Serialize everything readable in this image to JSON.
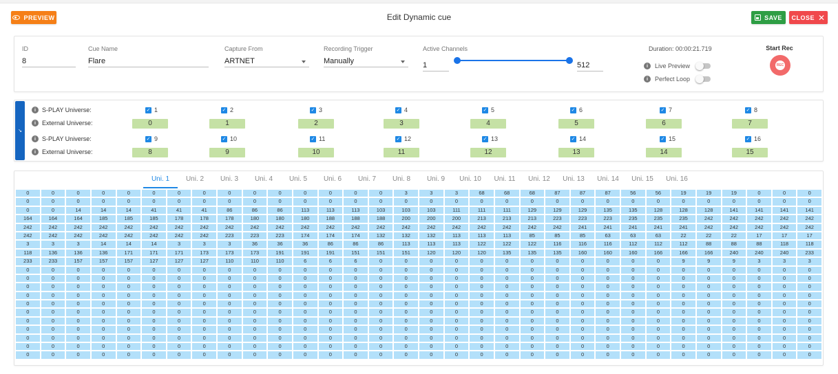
{
  "header": {
    "preview_label": "PREVIEW",
    "title": "Edit Dynamic cue",
    "save_label": "SAVE",
    "close_label": "CLOSE"
  },
  "form": {
    "id_label": "ID",
    "id_value": "8",
    "cue_name_label": "Cue Name",
    "cue_name_value": "Flare",
    "capture_from_label": "Capture From",
    "capture_from_value": "ARTNET",
    "recording_trigger_label": "Recording Trigger",
    "recording_trigger_value": "Manually",
    "active_channels_label": "Active Channels",
    "active_channels_min": "1",
    "active_channels_max": "512",
    "duration_text": "Duration: 00:00:21.719",
    "live_preview_label": "Live Preview",
    "perfect_loop_label": "Perfect Loop",
    "start_rec_label": "Start Rec",
    "rec_icon_text": "REC"
  },
  "universes": {
    "splay_label": "S-PLAY Universe:",
    "external_label": "External Universe:",
    "rows": [
      {
        "splay": [
          "1",
          "2",
          "3",
          "4",
          "5",
          "6",
          "7",
          "8"
        ],
        "external": [
          "0",
          "1",
          "2",
          "3",
          "4",
          "5",
          "6",
          "7"
        ]
      },
      {
        "splay": [
          "9",
          "10",
          "11",
          "12",
          "13",
          "14",
          "15",
          "16"
        ],
        "external": [
          "8",
          "9",
          "10",
          "11",
          "12",
          "13",
          "14",
          "15"
        ]
      }
    ]
  },
  "tabs": [
    "Uni. 1",
    "Uni. 2",
    "Uni. 3",
    "Uni. 4",
    "Uni. 5",
    "Uni. 6",
    "Uni. 7",
    "Uni. 8",
    "Uni. 9",
    "Uni. 10",
    "Uni. 11",
    "Uni. 12",
    "Uni. 13",
    "Uni. 14",
    "Uni. 15",
    "Uni. 16"
  ],
  "active_tab": 0,
  "channel_grid": [
    [
      "0",
      "0",
      "0",
      "0",
      "0",
      "0",
      "0",
      "0",
      "0",
      "0",
      "0",
      "0",
      "0",
      "0",
      "0",
      "3",
      "3",
      "3",
      "68",
      "68",
      "68",
      "87",
      "87",
      "87",
      "56",
      "56",
      "19",
      "19",
      "19",
      "0",
      "0",
      "0"
    ],
    [
      "0",
      "0",
      "0",
      "0",
      "0",
      "0",
      "0",
      "0",
      "0",
      "0",
      "0",
      "0",
      "0",
      "0",
      "0",
      "0",
      "0",
      "0",
      "0",
      "0",
      "0",
      "0",
      "0",
      "0",
      "0",
      "0",
      "0",
      "0",
      "0",
      "0",
      "0",
      "0"
    ],
    [
      "0",
      "0",
      "14",
      "14",
      "14",
      "41",
      "41",
      "41",
      "86",
      "86",
      "86",
      "113",
      "113",
      "113",
      "103",
      "103",
      "103",
      "111",
      "111",
      "111",
      "129",
      "129",
      "129",
      "135",
      "135",
      "128",
      "128",
      "128",
      "141",
      "141",
      "141",
      "141"
    ],
    [
      "164",
      "164",
      "164",
      "185",
      "185",
      "185",
      "178",
      "178",
      "178",
      "180",
      "180",
      "180",
      "188",
      "188",
      "188",
      "200",
      "200",
      "200",
      "213",
      "213",
      "213",
      "223",
      "223",
      "223",
      "235",
      "235",
      "235",
      "242",
      "242",
      "242",
      "242",
      "242"
    ],
    [
      "242",
      "242",
      "242",
      "242",
      "242",
      "242",
      "242",
      "242",
      "242",
      "242",
      "242",
      "242",
      "242",
      "242",
      "242",
      "242",
      "242",
      "242",
      "242",
      "242",
      "242",
      "242",
      "241",
      "241",
      "241",
      "241",
      "241",
      "242",
      "242",
      "242",
      "242",
      "242"
    ],
    [
      "242",
      "242",
      "242",
      "242",
      "242",
      "242",
      "242",
      "242",
      "223",
      "223",
      "223",
      "174",
      "174",
      "174",
      "132",
      "132",
      "132",
      "113",
      "113",
      "113",
      "85",
      "85",
      "85",
      "63",
      "63",
      "63",
      "22",
      "22",
      "22",
      "17",
      "17",
      "17"
    ],
    [
      "3",
      "3",
      "3",
      "14",
      "14",
      "14",
      "3",
      "3",
      "3",
      "36",
      "36",
      "36",
      "86",
      "86",
      "86",
      "113",
      "113",
      "113",
      "122",
      "122",
      "122",
      "116",
      "116",
      "116",
      "112",
      "112",
      "112",
      "88",
      "88",
      "88",
      "118",
      "118"
    ],
    [
      "118",
      "136",
      "136",
      "136",
      "171",
      "171",
      "171",
      "173",
      "173",
      "173",
      "191",
      "191",
      "191",
      "151",
      "151",
      "151",
      "120",
      "120",
      "120",
      "135",
      "135",
      "135",
      "160",
      "160",
      "160",
      "166",
      "166",
      "166",
      "240",
      "240",
      "240",
      "233"
    ],
    [
      "233",
      "233",
      "157",
      "157",
      "157",
      "127",
      "127",
      "127",
      "110",
      "110",
      "110",
      "6",
      "6",
      "6",
      "0",
      "0",
      "0",
      "0",
      "0",
      "0",
      "0",
      "0",
      "0",
      "0",
      "0",
      "0",
      "9",
      "9",
      "9",
      "3",
      "3",
      "3"
    ],
    [
      "0",
      "0",
      "0",
      "0",
      "0",
      "0",
      "0",
      "0",
      "0",
      "0",
      "0",
      "0",
      "0",
      "0",
      "0",
      "0",
      "0",
      "0",
      "0",
      "0",
      "0",
      "0",
      "0",
      "0",
      "0",
      "0",
      "0",
      "0",
      "0",
      "0",
      "0",
      "0"
    ],
    [
      "0",
      "0",
      "0",
      "0",
      "0",
      "0",
      "0",
      "0",
      "0",
      "0",
      "0",
      "0",
      "0",
      "0",
      "0",
      "0",
      "0",
      "0",
      "0",
      "0",
      "0",
      "0",
      "0",
      "0",
      "0",
      "0",
      "0",
      "0",
      "0",
      "0",
      "0",
      "0"
    ],
    [
      "0",
      "0",
      "0",
      "0",
      "0",
      "0",
      "0",
      "0",
      "0",
      "0",
      "0",
      "0",
      "0",
      "0",
      "0",
      "0",
      "0",
      "0",
      "0",
      "0",
      "0",
      "0",
      "0",
      "0",
      "0",
      "0",
      "0",
      "0",
      "0",
      "0",
      "0",
      "0"
    ],
    [
      "0",
      "0",
      "0",
      "0",
      "0",
      "0",
      "0",
      "0",
      "0",
      "0",
      "0",
      "0",
      "0",
      "0",
      "0",
      "0",
      "0",
      "0",
      "0",
      "0",
      "0",
      "0",
      "0",
      "0",
      "0",
      "0",
      "0",
      "0",
      "0",
      "0",
      "0",
      "0"
    ],
    [
      "0",
      "0",
      "0",
      "0",
      "0",
      "0",
      "0",
      "0",
      "0",
      "0",
      "0",
      "0",
      "0",
      "0",
      "0",
      "0",
      "0",
      "0",
      "0",
      "0",
      "0",
      "0",
      "0",
      "0",
      "0",
      "0",
      "0",
      "0",
      "0",
      "0",
      "0",
      "0"
    ],
    [
      "0",
      "0",
      "0",
      "0",
      "0",
      "0",
      "0",
      "0",
      "0",
      "0",
      "0",
      "0",
      "0",
      "0",
      "0",
      "0",
      "0",
      "0",
      "0",
      "0",
      "0",
      "0",
      "0",
      "0",
      "0",
      "0",
      "0",
      "0",
      "0",
      "0",
      "0",
      "0"
    ],
    [
      "0",
      "0",
      "0",
      "0",
      "0",
      "0",
      "0",
      "0",
      "0",
      "0",
      "0",
      "0",
      "0",
      "0",
      "0",
      "0",
      "0",
      "0",
      "0",
      "0",
      "0",
      "0",
      "0",
      "0",
      "0",
      "0",
      "0",
      "0",
      "0",
      "0",
      "0",
      "0"
    ],
    [
      "0",
      "0",
      "0",
      "0",
      "0",
      "0",
      "0",
      "0",
      "0",
      "0",
      "0",
      "0",
      "0",
      "0",
      "0",
      "0",
      "0",
      "0",
      "0",
      "0",
      "0",
      "0",
      "0",
      "0",
      "0",
      "0",
      "0",
      "0",
      "0",
      "0",
      "0",
      "0"
    ],
    [
      "0",
      "0",
      "0",
      "0",
      "0",
      "0",
      "0",
      "0",
      "0",
      "0",
      "0",
      "0",
      "0",
      "0",
      "0",
      "0",
      "0",
      "0",
      "0",
      "0",
      "0",
      "0",
      "0",
      "0",
      "0",
      "0",
      "0",
      "0",
      "0",
      "0",
      "0",
      "0"
    ],
    [
      "0",
      "0",
      "0",
      "0",
      "0",
      "0",
      "0",
      "0",
      "0",
      "0",
      "0",
      "0",
      "0",
      "0",
      "0",
      "0",
      "0",
      "0",
      "0",
      "0",
      "0",
      "0",
      "0",
      "0",
      "0",
      "0",
      "0",
      "0",
      "0",
      "0",
      "0",
      "0"
    ],
    [
      "0",
      "0",
      "0",
      "0",
      "0",
      "0",
      "0",
      "0",
      "0",
      "0",
      "0",
      "0",
      "0",
      "0",
      "0",
      "0",
      "0",
      "0",
      "0",
      "0",
      "0",
      "0",
      "0",
      "0",
      "0",
      "0",
      "0",
      "0",
      "0",
      "0",
      "0",
      "0"
    ]
  ],
  "colors": {
    "preview": "#f57f17",
    "save": "#2e9e44",
    "close": "#f0484b",
    "accent": "#1e88e5",
    "cell": "#b3e0fa",
    "external_box": "#c5e1a5"
  }
}
